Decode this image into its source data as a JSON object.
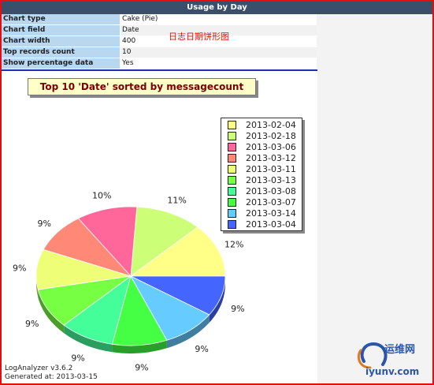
{
  "header": {
    "title": "Usage by Day"
  },
  "properties": [
    {
      "key": "Chart type",
      "value": "Cake (Pie)"
    },
    {
      "key": "Chart field",
      "value": "Date"
    },
    {
      "key": "Chart width",
      "value": "400"
    },
    {
      "key": "Top records count",
      "value": "10"
    },
    {
      "key": "Show percentage data",
      "value": "Yes"
    }
  ],
  "annotation": "日志日期饼形图",
  "footer": {
    "line1": "LogAnalyzer v3.6.2",
    "line2": "Generated at: 2013-03-15"
  },
  "watermark": {
    "text1": "运维网",
    "text2": "iyunv.com"
  },
  "chart_data": {
    "type": "pie",
    "title": "Top 10 'Date' sorted by messagecount",
    "legend_position": "top-right",
    "slices": [
      {
        "label": "2013-02-04",
        "percent": 12,
        "color": "#ffff88"
      },
      {
        "label": "2013-02-18",
        "percent": 11,
        "color": "#ccff77"
      },
      {
        "label": "2013-03-06",
        "percent": 10,
        "color": "#ff6699"
      },
      {
        "label": "2013-03-12",
        "percent": 9,
        "color": "#ff8877"
      },
      {
        "label": "2013-03-11",
        "percent": 9,
        "color": "#eeff77"
      },
      {
        "label": "2013-03-13",
        "percent": 9,
        "color": "#77ff44"
      },
      {
        "label": "2013-03-08",
        "percent": 9,
        "color": "#44ff99"
      },
      {
        "label": "2013-03-07",
        "percent": 9,
        "color": "#44ff44"
      },
      {
        "label": "2013-03-14",
        "percent": 9,
        "color": "#66ccff"
      },
      {
        "label": "2013-03-04",
        "percent": 9,
        "color": "#4466ff"
      }
    ]
  }
}
